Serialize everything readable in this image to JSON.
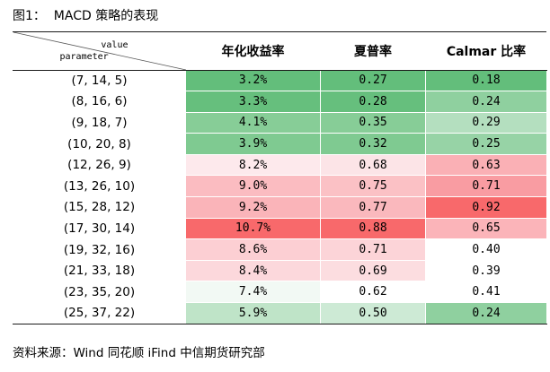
{
  "figure": {
    "title": "图1：  MACD 策略的表现"
  },
  "table": {
    "corner_value_label": "value",
    "corner_param_label": "parameter",
    "columns": [
      "年化收益率",
      "夏普率",
      "Calmar 比率"
    ],
    "rows": [
      {
        "param": "(7,  14,  5)",
        "ret": "3.2%",
        "sharpe": "0.27",
        "calmar": "0.18",
        "colors": [
          "#63be7b",
          "#63be7b",
          "#63be7b"
        ]
      },
      {
        "param": "(8,  16,  6)",
        "ret": "3.3%",
        "sharpe": "0.28",
        "calmar": "0.24",
        "colors": [
          "#66bf7d",
          "#66bf7d",
          "#8fd09f"
        ]
      },
      {
        "param": "(9,  18,  7)",
        "ret": "4.1%",
        "sharpe": "0.35",
        "calmar": "0.29",
        "colors": [
          "#87cd97",
          "#87cd97",
          "#b4dfbf"
        ]
      },
      {
        "param": "(10,  20,  8)",
        "ret": "3.9%",
        "sharpe": "0.32",
        "calmar": "0.25",
        "colors": [
          "#7fca91",
          "#7fca91",
          "#97d3a6"
        ]
      },
      {
        "param": "(12,  26,  9)",
        "ret": "8.2%",
        "sharpe": "0.68",
        "calmar": "0.63",
        "colors": [
          "#fde9ec",
          "#fce4e7",
          "#fab0b5"
        ]
      },
      {
        "param": "(13,  26,  10)",
        "ret": "9.0%",
        "sharpe": "0.75",
        "calmar": "0.71",
        "colors": [
          "#fbbcc1",
          "#fbc1c5",
          "#f99ca2"
        ]
      },
      {
        "param": "(15,  28,  12)",
        "ret": "9.2%",
        "sharpe": "0.77",
        "calmar": "0.92",
        "colors": [
          "#fab4b9",
          "#fab8bd",
          "#f8696b"
        ]
      },
      {
        "param": "(17,  30,  14)",
        "ret": "10.7%",
        "sharpe": "0.88",
        "calmar": "0.65",
        "colors": [
          "#f8696b",
          "#f8696b",
          "#fbb4b9"
        ]
      },
      {
        "param": "(19,  32,  16)",
        "ret": "8.6%",
        "sharpe": "0.71",
        "calmar": "0.40",
        "colors": [
          "#fccfd3",
          "#fcd4d8",
          "#ffffff"
        ]
      },
      {
        "param": "(21,  33,  18)",
        "ret": "8.4%",
        "sharpe": "0.69",
        "calmar": "0.39",
        "colors": [
          "#fcd8dc",
          "#fcdde0",
          "#ffffff"
        ]
      },
      {
        "param": "(23,  35,  20)",
        "ret": "7.4%",
        "sharpe": "0.62",
        "calmar": "0.41",
        "colors": [
          "#f2f9f4",
          "#ffffff",
          "#ffffff"
        ]
      },
      {
        "param": "(25,  37,  22)",
        "ret": "5.9%",
        "sharpe": "0.50",
        "calmar": "0.24",
        "colors": [
          "#bfe4c8",
          "#cdead5",
          "#8fd09f"
        ]
      }
    ]
  },
  "source": "资料来源：Wind 同花顺 iFind 中信期货研究部"
}
